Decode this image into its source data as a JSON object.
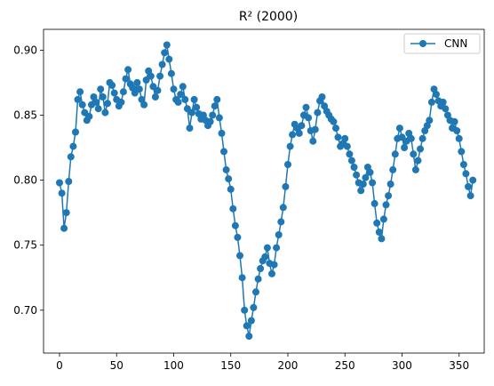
{
  "chart_data": {
    "type": "line",
    "title": "R² (2000)",
    "xlabel": "",
    "ylabel": "",
    "xlim": [
      -14,
      372
    ],
    "ylim": [
      0.667,
      0.916
    ],
    "xticks": [
      0,
      50,
      100,
      150,
      200,
      250,
      300,
      350
    ],
    "yticks": [
      0.7,
      0.75,
      0.8,
      0.85,
      0.9
    ],
    "ytick_labels": [
      "0.70",
      "0.75",
      "0.80",
      "0.85",
      "0.90"
    ],
    "grid": false,
    "legend": "top-right",
    "colors": {
      "series": "#1f77b4"
    },
    "series": [
      {
        "name": "CNN",
        "x": [
          0,
          2,
          4,
          6,
          8,
          10,
          12,
          14,
          16,
          18,
          20,
          22,
          24,
          26,
          28,
          30,
          32,
          34,
          36,
          38,
          40,
          42,
          44,
          46,
          48,
          50,
          52,
          54,
          56,
          58,
          60,
          62,
          64,
          66,
          68,
          70,
          72,
          74,
          76,
          78,
          80,
          82,
          84,
          86,
          88,
          90,
          92,
          94,
          96,
          98,
          100,
          102,
          104,
          106,
          108,
          110,
          112,
          114,
          116,
          118,
          120,
          122,
          124,
          126,
          128,
          130,
          132,
          134,
          136,
          138,
          140,
          142,
          144,
          146,
          148,
          150,
          152,
          154,
          156,
          158,
          160,
          162,
          164,
          166,
          168,
          170,
          172,
          174,
          176,
          178,
          180,
          182,
          184,
          186,
          188,
          190,
          192,
          194,
          196,
          198,
          200,
          202,
          204,
          206,
          208,
          210,
          212,
          214,
          216,
          218,
          220,
          222,
          224,
          226,
          228,
          230,
          232,
          234,
          236,
          238,
          240,
          242,
          244,
          246,
          248,
          250,
          252,
          254,
          256,
          258,
          260,
          262,
          264,
          266,
          268,
          270,
          272,
          274,
          276,
          278,
          280,
          282,
          284,
          286,
          288,
          290,
          292,
          294,
          296,
          298,
          300,
          302,
          304,
          306,
          308,
          310,
          312,
          314,
          316,
          318,
          320,
          322,
          324,
          326,
          328,
          330,
          332,
          334,
          336,
          338,
          340,
          342,
          344,
          346,
          348,
          350,
          352,
          354,
          356,
          358,
          360,
          362
        ],
        "y": [
          0.798,
          0.79,
          0.763,
          0.775,
          0.799,
          0.818,
          0.826,
          0.837,
          0.862,
          0.868,
          0.858,
          0.852,
          0.846,
          0.849,
          0.858,
          0.864,
          0.86,
          0.855,
          0.87,
          0.864,
          0.852,
          0.859,
          0.875,
          0.873,
          0.867,
          0.862,
          0.857,
          0.86,
          0.868,
          0.878,
          0.885,
          0.874,
          0.871,
          0.867,
          0.875,
          0.87,
          0.862,
          0.858,
          0.877,
          0.884,
          0.88,
          0.872,
          0.864,
          0.869,
          0.88,
          0.889,
          0.898,
          0.904,
          0.893,
          0.882,
          0.87,
          0.862,
          0.86,
          0.866,
          0.872,
          0.862,
          0.855,
          0.84,
          0.852,
          0.862,
          0.856,
          0.851,
          0.847,
          0.85,
          0.846,
          0.842,
          0.845,
          0.85,
          0.857,
          0.862,
          0.848,
          0.836,
          0.822,
          0.808,
          0.801,
          0.793,
          0.778,
          0.765,
          0.756,
          0.742,
          0.725,
          0.7,
          0.688,
          0.68,
          0.692,
          0.702,
          0.714,
          0.724,
          0.732,
          0.738,
          0.741,
          0.748,
          0.736,
          0.728,
          0.735,
          0.748,
          0.758,
          0.768,
          0.779,
          0.795,
          0.812,
          0.826,
          0.835,
          0.843,
          0.84,
          0.836,
          0.842,
          0.85,
          0.856,
          0.848,
          0.838,
          0.83,
          0.839,
          0.852,
          0.861,
          0.864,
          0.857,
          0.853,
          0.85,
          0.847,
          0.845,
          0.84,
          0.833,
          0.826,
          0.828,
          0.832,
          0.826,
          0.82,
          0.815,
          0.81,
          0.804,
          0.798,
          0.792,
          0.797,
          0.802,
          0.81,
          0.806,
          0.798,
          0.782,
          0.767,
          0.76,
          0.755,
          0.77,
          0.781,
          0.788,
          0.797,
          0.808,
          0.82,
          0.832,
          0.84,
          0.833,
          0.825,
          0.83,
          0.836,
          0.832,
          0.82,
          0.808,
          0.815,
          0.824,
          0.832,
          0.838,
          0.842,
          0.846,
          0.86,
          0.87,
          0.866,
          0.861,
          0.857,
          0.86,
          0.855,
          0.85,
          0.846,
          0.84,
          0.845,
          0.838,
          0.832,
          0.822,
          0.812,
          0.805,
          0.795,
          0.788,
          0.8
        ]
      }
    ]
  }
}
